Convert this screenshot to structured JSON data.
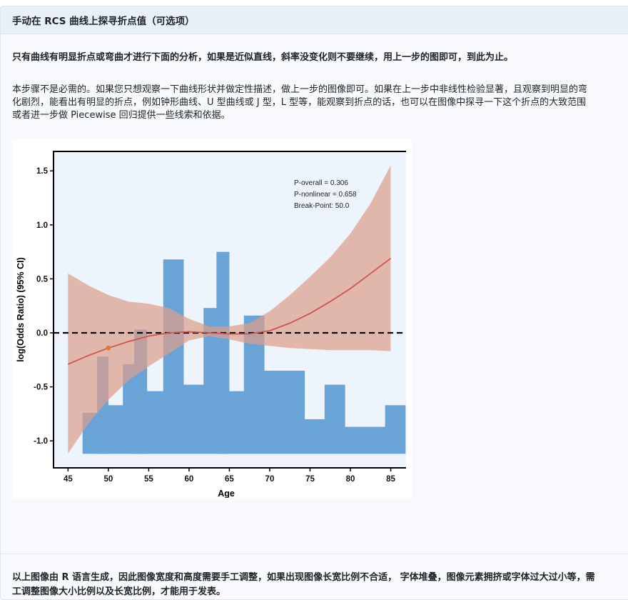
{
  "section": {
    "title": "手动在 RCS 曲线上探寻折点值（可选项）"
  },
  "intro": {
    "bold_line": "只有曲线有明显折点或弯曲才进行下面的分析，如果是近似直线，斜率没变化则不要继续，用上一步的图即可，到此为止。",
    "para_lines": [
      "本步骤不是必需的。如果您只想观察一下曲线形状并做定性描述，做上一步的图像即可。如果在上一步中非线性检验显著，且观察到明显的弯",
      "化剧烈，能看出有明显的折点，例如钟形曲线、U 型曲线或 J 型，L 型等，能观察到折点的话，也可以在图像中探寻一下这个折点的大致范围",
      "或者进一步做 Piecewise 回归提供一些线索和依据。"
    ]
  },
  "footer": {
    "lines": [
      "以上图像由 R 语言生成，因此图像宽度和高度需要手工调整，如果出现图像长宽比例不合适， 字体堆叠，图像元素拥挤或字体过大过小等，需",
      "工调整图像大小比例以及长宽比例，才能用于发表。"
    ]
  },
  "chart_data": {
    "type": "line",
    "xlabel": "Age",
    "ylabel": "log(Odds Ratio) (95% CI)",
    "xlim": [
      43.2,
      86.9
    ],
    "ylim": [
      -1.25,
      1.68
    ],
    "xticks": [
      45,
      50,
      55,
      60,
      65,
      70,
      75,
      80,
      85
    ],
    "yticks": [
      -1.0,
      -0.5,
      0.0,
      0.5,
      1.0,
      1.5
    ],
    "ytick_labels": [
      "-1.0",
      "-0.5",
      "0.0",
      "0.5",
      "1.0",
      "1.5"
    ],
    "reference_line": 0.0,
    "annotations": [
      "P-overall = 0.306",
      "P-nonlinear = 0.658",
      "Break-Point: 50.0"
    ],
    "break_point": {
      "x": 50.0,
      "y": -0.14
    },
    "curve": {
      "x": [
        45,
        47.5,
        50,
        52.5,
        55,
        57.5,
        60,
        62.5,
        65,
        67.5,
        70,
        72.5,
        75,
        77.5,
        80,
        82.5,
        85
      ],
      "y": [
        -0.29,
        -0.21,
        -0.14,
        -0.08,
        -0.03,
        0.0,
        0.01,
        0.0,
        -0.01,
        -0.01,
        0.02,
        0.09,
        0.18,
        0.29,
        0.41,
        0.55,
        0.69
      ]
    },
    "ci_upper": [
      0.55,
      0.44,
      0.35,
      0.29,
      0.27,
      0.23,
      0.13,
      0.06,
      0.06,
      0.09,
      0.2,
      0.35,
      0.52,
      0.7,
      0.92,
      1.2,
      1.55
    ],
    "ci_lower": [
      -1.12,
      -0.84,
      -0.62,
      -0.44,
      -0.31,
      -0.19,
      -0.07,
      -0.03,
      -0.06,
      -0.1,
      -0.12,
      -0.14,
      -0.15,
      -0.16,
      -0.16,
      -0.16,
      -0.17
    ],
    "histogram": {
      "baseline": -1.12,
      "bin_width": 2.5,
      "bin_starts": [
        46.8,
        49.3,
        51.8,
        54.3,
        56.8,
        59.3,
        61.8,
        64.3,
        66.8,
        69.3,
        71.8,
        74.3,
        76.8,
        79.3,
        81.8,
        84.3
      ],
      "tops": [
        -0.74,
        -0.67,
        -0.29,
        -0.54,
        0.68,
        -0.48,
        0.23,
        -0.54,
        0.16,
        -0.35,
        -0.35,
        -0.8,
        -0.48,
        -0.87,
        -0.87,
        -0.67
      ],
      "narrow_bars": [
        {
          "x0": 48.6,
          "x1": 50.0,
          "top": -0.22
        },
        {
          "x0": 53.2,
          "x1": 54.8,
          "top": 0.03
        },
        {
          "x0": 63.4,
          "x1": 65.0,
          "top": 0.75
        }
      ]
    },
    "colors": {
      "histogram": "#6aa3d6",
      "ci_band": "#dca08c",
      "curve": "#d1544f",
      "reference_line": "#000000",
      "plot_background": "#eef4fb",
      "break_point": "#e07a45"
    }
  }
}
